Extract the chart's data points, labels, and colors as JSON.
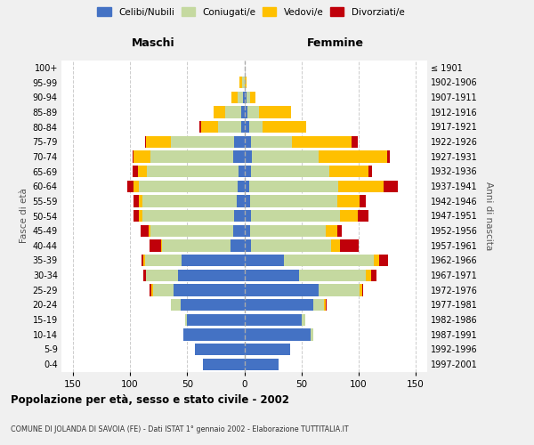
{
  "age_groups": [
    "0-4",
    "5-9",
    "10-14",
    "15-19",
    "20-24",
    "25-29",
    "30-34",
    "35-39",
    "40-44",
    "45-49",
    "50-54",
    "55-59",
    "60-64",
    "65-69",
    "70-74",
    "75-79",
    "80-84",
    "85-89",
    "90-94",
    "95-99",
    "100+"
  ],
  "birth_years": [
    "1997-2001",
    "1992-1996",
    "1987-1991",
    "1982-1986",
    "1977-1981",
    "1972-1976",
    "1967-1971",
    "1962-1966",
    "1957-1961",
    "1952-1956",
    "1947-1951",
    "1942-1946",
    "1937-1941",
    "1932-1936",
    "1927-1931",
    "1922-1926",
    "1917-1921",
    "1912-1916",
    "1907-1911",
    "1902-1906",
    "≤ 1901"
  ],
  "maschi_celibi": [
    36,
    43,
    53,
    50,
    56,
    62,
    58,
    55,
    12,
    10,
    9,
    7,
    6,
    5,
    10,
    9,
    3,
    3,
    1,
    0,
    0
  ],
  "maschi_coniugati": [
    0,
    0,
    0,
    2,
    8,
    18,
    28,
    32,
    60,
    72,
    80,
    82,
    86,
    80,
    72,
    55,
    20,
    14,
    5,
    2,
    0
  ],
  "maschi_vedovi": [
    0,
    0,
    0,
    0,
    0,
    1,
    0,
    1,
    1,
    2,
    3,
    3,
    5,
    8,
    15,
    22,
    15,
    10,
    5,
    2,
    0
  ],
  "maschi_divorziati": [
    0,
    0,
    0,
    0,
    0,
    2,
    2,
    2,
    10,
    7,
    5,
    5,
    5,
    5,
    1,
    1,
    1,
    0,
    0,
    0,
    0
  ],
  "femmine_nubili": [
    30,
    40,
    58,
    50,
    60,
    65,
    48,
    35,
    6,
    5,
    6,
    5,
    4,
    6,
    7,
    6,
    4,
    3,
    2,
    0,
    0
  ],
  "femmine_coniugate": [
    0,
    0,
    2,
    3,
    10,
    36,
    58,
    78,
    70,
    66,
    78,
    76,
    78,
    68,
    58,
    36,
    12,
    10,
    3,
    0,
    0
  ],
  "femmine_vedove": [
    0,
    0,
    0,
    0,
    1,
    2,
    5,
    5,
    8,
    10,
    15,
    20,
    40,
    35,
    60,
    52,
    38,
    28,
    5,
    2,
    0
  ],
  "femmine_divorziate": [
    0,
    0,
    0,
    0,
    1,
    1,
    5,
    8,
    16,
    4,
    10,
    5,
    12,
    3,
    2,
    5,
    0,
    0,
    0,
    0,
    0
  ],
  "colors": {
    "celibi_nubili": "#4472c4",
    "coniugati": "#c5d9a0",
    "vedovi": "#ffc000",
    "divorziati": "#c0000a"
  },
  "title": "Popolazione per età, sesso e stato civile - 2002",
  "subtitle": "COMUNE DI JOLANDA DI SAVOIA (FE) - Dati ISTAT 1° gennaio 2002 - Elaborazione TUTTITALIA.IT",
  "xlim": 160,
  "label_maschi": "Maschi",
  "label_femmine": "Femmine",
  "ylabel_left": "Fasce di età",
  "ylabel_right": "Anni di nascita",
  "legend_labels": [
    "Celibi/Nubili",
    "Coniugati/e",
    "Vedovi/e",
    "Divorziati/e"
  ],
  "bg_color": "#f0f0f0",
  "plot_bg": "#ffffff"
}
